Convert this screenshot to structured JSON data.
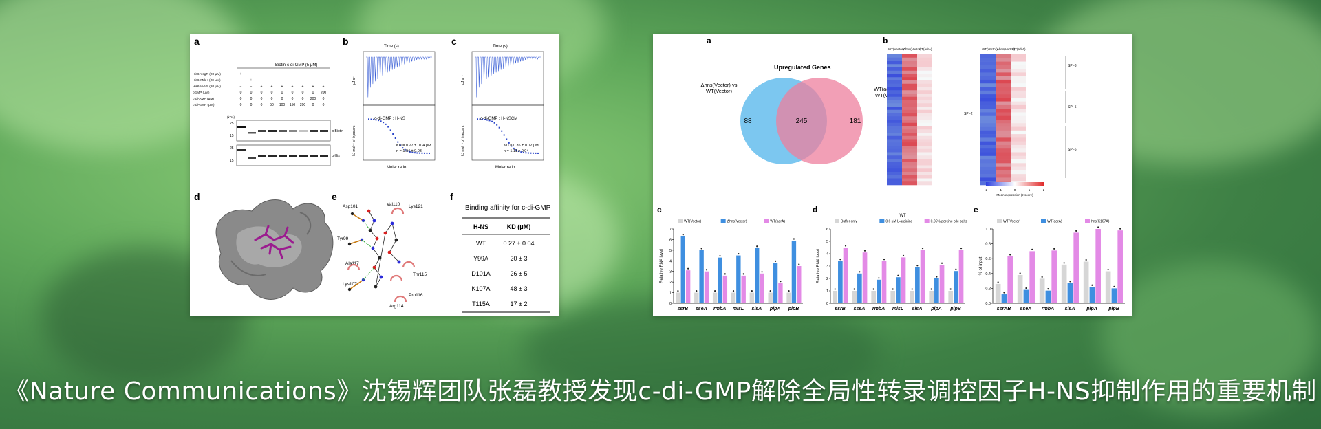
{
  "headline": "《Nature Communications》沈锡辉团队张磊教授发现c-di-GMP解除全局性转录调控因子H-NS抑制作用的重要机制",
  "colors": {
    "blue": "#3f8fe0",
    "pink": "#e38ae6",
    "grey": "#d6d6d6",
    "venn_blue": "#6ec1ee",
    "venn_pink": "#ee7f9e"
  },
  "left_figure": {
    "a": {
      "label": "a",
      "top_title": "Biotin-c-di-GMP (5 μM)",
      "rows": [
        {
          "name": "His6-YcgR (20 μM)",
          "vals": [
            "+",
            "−",
            "−",
            "−",
            "−",
            "−",
            "−",
            "−",
            "−"
          ]
        },
        {
          "name": "His6-MrkH (20 μM)",
          "vals": [
            "−",
            "+",
            "−",
            "−",
            "−",
            "−",
            "−",
            "−",
            "−"
          ]
        },
        {
          "name": "His6-H-NS (20 μM)",
          "vals": [
            "−",
            "−",
            "+",
            "+",
            "+",
            "+",
            "+",
            "+",
            "+"
          ]
        },
        {
          "name": "cGMP (μM)",
          "vals": [
            "0",
            "0",
            "0",
            "0",
            "0",
            "0",
            "0",
            "0",
            "200"
          ]
        },
        {
          "name": "c-di-AMP (μM)",
          "vals": [
            "0",
            "0",
            "0",
            "0",
            "0",
            "0",
            "0",
            "200",
            "0"
          ]
        },
        {
          "name": "c-di-GMP (μM)",
          "vals": [
            "0",
            "0",
            "0",
            "50",
            "100",
            "150",
            "200",
            "0",
            "0"
          ]
        }
      ],
      "kda_label": "(kDa)",
      "blots": [
        "α-Biotin",
        "α-His"
      ],
      "markers": [
        "25",
        "15",
        "25",
        "15"
      ]
    },
    "b": {
      "label": "b",
      "time": "Time (s)",
      "title": "c-di-GMP : H-NS",
      "kd": "KD = 0.27 ± 0.04 μM",
      "n": "n = 1.04 ± 0.03",
      "xlabel": "Molar ratio",
      "ylabel": "kJ mol⁻¹ of injectant",
      "ylabel2": "μJ s⁻¹"
    },
    "c": {
      "label": "c",
      "time": "Time (s)",
      "title": "c-di-GMP : H-NSCM",
      "kd": "KD = 0.35 ± 0.02 μM",
      "n": "n = 1.11 ± 0.04",
      "xlabel": "Molar ratio",
      "ylabel": "kJ mol⁻¹ of injectant",
      "ylabel2": "μJ s⁻¹"
    },
    "d": {
      "label": "d"
    },
    "e": {
      "label": "e",
      "residues": [
        "Asp101",
        "Val110",
        "Lys121",
        "Tyr99",
        "Ala117",
        "Thr115",
        "Lys107",
        "Pro116",
        "Arg114"
      ]
    },
    "f": {
      "label": "f",
      "title": "Binding affinity for c-di-GMP",
      "col1": "H-NS",
      "col2": "KD (μM)",
      "rows": [
        {
          "name": "WT",
          "val": "0.27 ± 0.04"
        },
        {
          "name": "Y99A",
          "val": "20 ± 3"
        },
        {
          "name": "D101A",
          "val": "26 ± 5"
        },
        {
          "name": "K107A",
          "val": "48 ± 3"
        },
        {
          "name": "T115A",
          "val": "17 ± 2"
        }
      ]
    }
  },
  "right_figure": {
    "a": {
      "label": "a",
      "title": "Upregulated Genes",
      "left_set": "Δhns(Vector) vs WT(Vector)",
      "right_set": "WT(adrA) vs WT(Vector)",
      "only_left": "88",
      "overlap": "245",
      "only_right": "181"
    },
    "b": {
      "label": "b",
      "columns": [
        "WT(Vector)",
        "Δhns(Vector)",
        "WT(adrA)"
      ],
      "groups": [
        "SPI-2",
        "SPI-3",
        "SPI-5",
        "SPI-6"
      ],
      "legend_title": "Mean expression (z-score)",
      "legend_ticks": [
        "-2",
        "-1",
        "0",
        "1",
        "2"
      ]
    },
    "c": {
      "label": "c",
      "legend": [
        "WT(Vector)",
        "Δhns(Vector)",
        "WT(adrA)"
      ],
      "ylabel": "Relative RNA level",
      "categories": [
        "ssrB",
        "sseA",
        "rmbA",
        "misL",
        "slsA",
        "pipA",
        "pipB"
      ]
    },
    "d": {
      "label": "d",
      "top": "WT",
      "legend": [
        "Buffer only",
        "0.6 μM L-arginine",
        "0.05% porcine bile salts"
      ],
      "ylabel": "Relative RNA level",
      "categories": [
        "ssrB",
        "sseA",
        "rmbA",
        "misL",
        "slsA",
        "pipA",
        "pipB"
      ]
    },
    "e": {
      "label": "e",
      "legend": [
        "WT(Vector)",
        "WT(adrA)",
        "hns(K107A)"
      ],
      "ylabel": "% of input",
      "categories": [
        "ssrAB",
        "sseA",
        "rmbA",
        "slsA",
        "pipA",
        "pipB"
      ]
    }
  },
  "chart_data": [
    {
      "type": "bar",
      "panel": "c",
      "ylabel": "Relative RNA level",
      "ylim": [
        0,
        7
      ],
      "categories": [
        "ssrB",
        "sseA",
        "rmbA",
        "misL",
        "slsA",
        "pipA",
        "pipB"
      ],
      "series": [
        {
          "name": "WT(Vector)",
          "values": [
            1.0,
            1.0,
            1.0,
            1.0,
            1.0,
            1.0,
            1.0
          ]
        },
        {
          "name": "Δhns(Vector)",
          "values": [
            6.3,
            5.0,
            4.3,
            4.5,
            5.2,
            3.8,
            5.9
          ]
        },
        {
          "name": "WT(adrA)",
          "values": [
            3.1,
            3.0,
            2.6,
            2.6,
            2.8,
            1.9,
            3.5
          ]
        }
      ]
    },
    {
      "type": "bar",
      "panel": "d",
      "ylabel": "Relative RNA level",
      "ylim": [
        0,
        6
      ],
      "categories": [
        "ssrB",
        "sseA",
        "rmbA",
        "misL",
        "slsA",
        "pipA",
        "pipB"
      ],
      "series": [
        {
          "name": "Buffer only",
          "values": [
            1.0,
            1.0,
            1.0,
            1.0,
            1.0,
            1.0,
            1.0
          ]
        },
        {
          "name": "0.6 μM L-arginine",
          "values": [
            3.4,
            2.4,
            1.9,
            2.1,
            2.9,
            2.0,
            2.6
          ]
        },
        {
          "name": "0.05% porcine bile salts",
          "values": [
            4.5,
            4.1,
            3.4,
            3.7,
            4.3,
            3.1,
            4.3
          ]
        }
      ]
    },
    {
      "type": "bar",
      "panel": "e",
      "ylabel": "% of input",
      "ylim": [
        0,
        1.0
      ],
      "categories": [
        "ssrAB",
        "sseA",
        "rmbA",
        "slsA",
        "pipA",
        "pipB"
      ],
      "series": [
        {
          "name": "WT(Vector)",
          "values": [
            0.26,
            0.38,
            0.33,
            0.52,
            0.56,
            0.43
          ]
        },
        {
          "name": "WT(adrA)",
          "values": [
            0.12,
            0.18,
            0.17,
            0.27,
            0.22,
            0.2
          ]
        },
        {
          "name": "hns(K107A)",
          "values": [
            0.63,
            0.7,
            0.71,
            0.95,
            1.0,
            0.98
          ]
        }
      ]
    }
  ]
}
